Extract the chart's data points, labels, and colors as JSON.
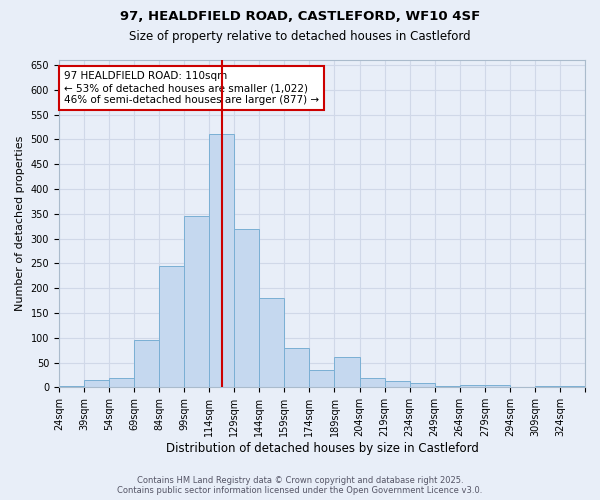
{
  "title_line1": "97, HEALDFIELD ROAD, CASTLEFORD, WF10 4SF",
  "title_line2": "Size of property relative to detached houses in Castleford",
  "xlabel": "Distribution of detached houses by size in Castleford",
  "ylabel": "Number of detached properties",
  "bar_labels": [
    "24sqm",
    "39sqm",
    "54sqm",
    "69sqm",
    "84sqm",
    "99sqm",
    "114sqm",
    "129sqm",
    "144sqm",
    "159sqm",
    "174sqm",
    "189sqm",
    "204sqm",
    "219sqm",
    "234sqm",
    "249sqm",
    "264sqm",
    "279sqm",
    "294sqm",
    "309sqm",
    "324sqm"
  ],
  "bar_values": [
    3,
    15,
    18,
    95,
    245,
    345,
    510,
    320,
    180,
    80,
    35,
    62,
    18,
    13,
    8,
    2,
    4,
    5,
    1,
    3,
    3
  ],
  "bar_color": "#c5d8ef",
  "bar_edge_color": "#7aafd4",
  "grid_color": "#d0d8e8",
  "vline_color": "#cc0000",
  "annotation_text": "97 HEALDFIELD ROAD: 110sqm\n← 53% of detached houses are smaller (1,022)\n46% of semi-detached houses are larger (877) →",
  "annotation_box_color": "#ffffff",
  "annotation_box_edge_color": "#cc0000",
  "ylim": [
    0,
    660
  ],
  "yticks": [
    0,
    50,
    100,
    150,
    200,
    250,
    300,
    350,
    400,
    450,
    500,
    550,
    600,
    650
  ],
  "footer_line1": "Contains HM Land Registry data © Crown copyright and database right 2025.",
  "footer_line2": "Contains public sector information licensed under the Open Government Licence v3.0.",
  "bg_color": "#e8eef8",
  "title1_fontsize": 9.5,
  "title2_fontsize": 8.5,
  "ylabel_fontsize": 8,
  "xlabel_fontsize": 8.5,
  "tick_fontsize": 7,
  "footer_fontsize": 6,
  "annot_fontsize": 7.5
}
